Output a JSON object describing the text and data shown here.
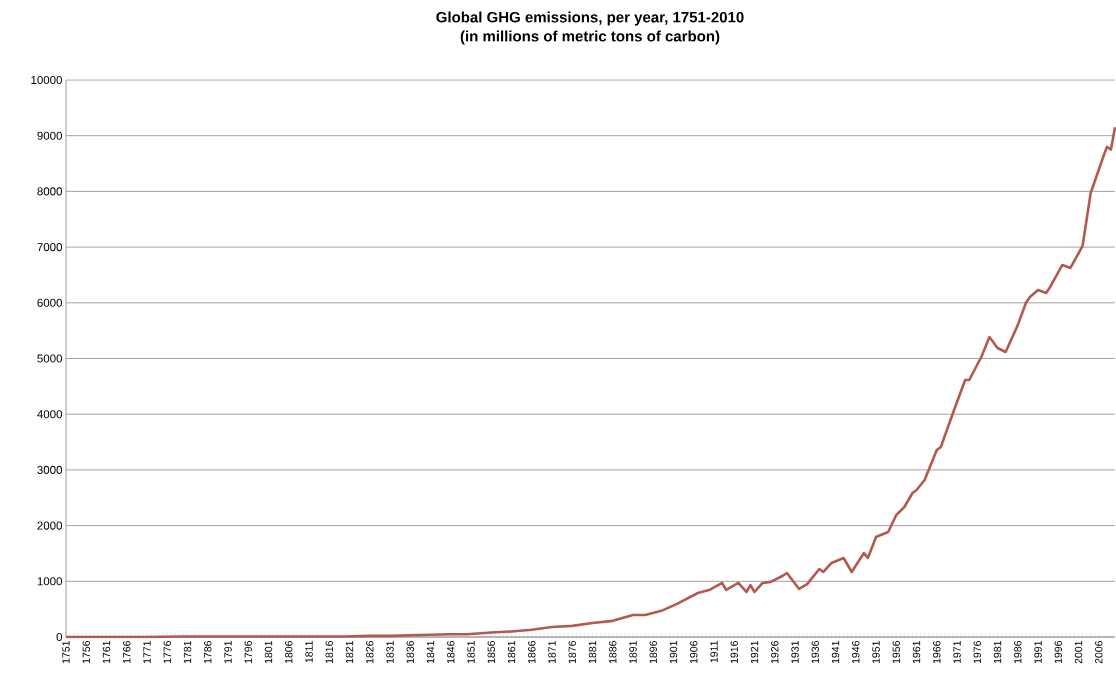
{
  "chart_data": {
    "type": "line",
    "title": "Global GHG emissions, per year, 1751-2010",
    "subtitle": "(in millions of metric tons of carbon)",
    "x": [
      1751,
      1760,
      1770,
      1780,
      1790,
      1800,
      1810,
      1820,
      1826,
      1831,
      1836,
      1841,
      1846,
      1850,
      1856,
      1861,
      1866,
      1871,
      1876,
      1881,
      1886,
      1891,
      1894,
      1898,
      1902,
      1907,
      1910,
      1913,
      1914,
      1917,
      1919,
      1920,
      1921,
      1923,
      1925,
      1928,
      1929,
      1932,
      1934,
      1937,
      1938,
      1940,
      1943,
      1945,
      1948,
      1949,
      1951,
      1954,
      1956,
      1958,
      1960,
      1961,
      1963,
      1966,
      1967,
      1970,
      1973,
      1974,
      1977,
      1979,
      1981,
      1983,
      1986,
      1988,
      1989,
      1991,
      1993,
      1994,
      1997,
      1999,
      2002,
      2004,
      2007,
      2008,
      2009,
      2010
    ],
    "series": [
      {
        "color": "#b35a4f",
        "values": [
          0,
          0,
          0,
          10,
          10,
          10,
          10,
          10,
          20,
          20,
          30,
          40,
          50,
          50,
          80,
          100,
          130,
          180,
          200,
          250,
          290,
          395,
          395,
          470,
          600,
          790,
          850,
          970,
          844,
          970,
          808,
          933,
          808,
          970,
          990,
          1100,
          1149,
          862,
          950,
          1221,
          1170,
          1330,
          1418,
          1167,
          1508,
          1418,
          1795,
          1885,
          2190,
          2334,
          2585,
          2640,
          2818,
          3357,
          3411,
          4022,
          4614,
          4614,
          5027,
          5386,
          5188,
          5117,
          5600,
          5996,
          6104,
          6230,
          6176,
          6284,
          6679,
          6625,
          7020,
          7971,
          8600,
          8800,
          8750,
          9150
        ]
      }
    ],
    "xlim": [
      1751,
      2010
    ],
    "ylim": [
      0,
      10000
    ],
    "xticks": [
      1751,
      1756,
      1761,
      1766,
      1771,
      1776,
      1781,
      1786,
      1791,
      1796,
      1801,
      1806,
      1811,
      1816,
      1821,
      1826,
      1831,
      1836,
      1841,
      1846,
      1851,
      1856,
      1861,
      1866,
      1871,
      1876,
      1881,
      1886,
      1891,
      1896,
      1901,
      1906,
      1911,
      1916,
      1921,
      1926,
      1931,
      1936,
      1941,
      1946,
      1951,
      1956,
      1961,
      1966,
      1971,
      1976,
      1981,
      1986,
      1991,
      1996,
      2001,
      2006
    ],
    "yticks": [
      0,
      1000,
      2000,
      3000,
      4000,
      5000,
      6000,
      7000,
      8000,
      9000,
      10000
    ],
    "grid": "y",
    "marker": "none",
    "line_style": "solid"
  }
}
